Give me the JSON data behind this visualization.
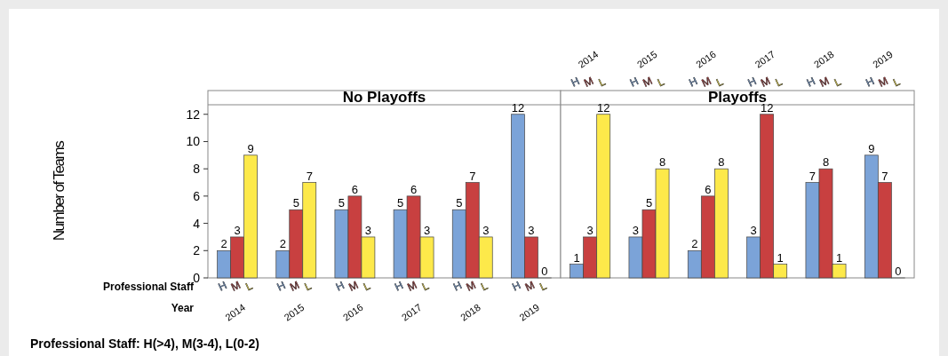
{
  "chart_data": [
    {
      "type": "bar",
      "title": "No Playoffs",
      "ylabel": "Number of Teams",
      "xlabel": "Year",
      "annotations": [
        "Professional Staff",
        "Professional Staff: H(>4), M(3-4), L(0-2)"
      ],
      "categories": [
        "2014",
        "2015",
        "2016",
        "2017",
        "2018",
        "2019"
      ],
      "ylim": [
        0,
        12.7
      ],
      "yticks": [
        0,
        2,
        4,
        6,
        8,
        10,
        12
      ],
      "data_labels": true,
      "series": [
        {
          "name": "H",
          "color": "#7ba3d8",
          "values": [
            2,
            2,
            5,
            5,
            5,
            12
          ]
        },
        {
          "name": "M",
          "color": "#c84040",
          "values": [
            3,
            5,
            6,
            6,
            7,
            3
          ]
        },
        {
          "name": "L",
          "color": "#fde94a",
          "values": [
            9,
            7,
            3,
            3,
            3,
            0
          ]
        }
      ]
    },
    {
      "type": "bar",
      "title": "Playoffs",
      "categories": [
        "2014",
        "2015",
        "2016",
        "2017",
        "2018",
        "2019"
      ],
      "ylim": [
        0,
        12.7
      ],
      "data_labels": true,
      "tick_labels": "x",
      "series": [
        {
          "name": "H",
          "color": "#7ba3d8",
          "values": [
            1,
            3,
            2,
            3,
            7,
            9
          ]
        },
        {
          "name": "M",
          "color": "#c84040",
          "values": [
            3,
            5,
            6,
            12,
            8,
            7
          ]
        },
        {
          "name": "L",
          "color": "#fde94a",
          "values": [
            12,
            8,
            8,
            1,
            1,
            0
          ]
        }
      ]
    }
  ]
}
